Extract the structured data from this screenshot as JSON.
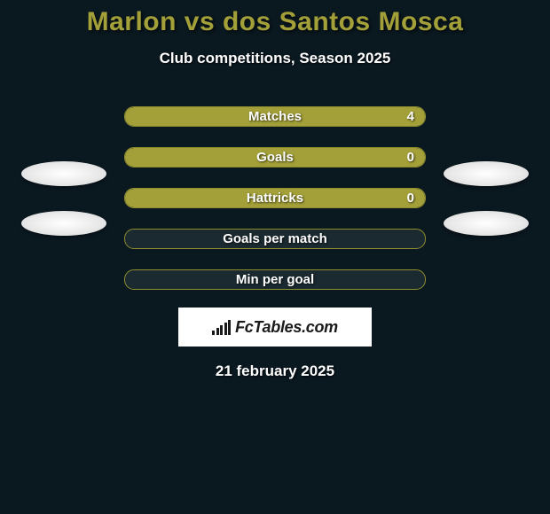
{
  "header": {
    "title": "Marlon vs dos Santos Mosca",
    "subtitle": "Club competitions, Season 2025"
  },
  "colors": {
    "page_bg": "#0a1820",
    "accent": "#a3a039",
    "bar_border": "#8f8d2e",
    "bar_bg": "#1a2a30",
    "text": "#ffffff",
    "badge_bg": "#ffffff"
  },
  "stats": [
    {
      "label": "Matches",
      "value": "4",
      "show_value": true,
      "fill_pct": 100
    },
    {
      "label": "Goals",
      "value": "0",
      "show_value": true,
      "fill_pct": 100
    },
    {
      "label": "Hattricks",
      "value": "0",
      "show_value": true,
      "fill_pct": 100
    },
    {
      "label": "Goals per match",
      "value": "",
      "show_value": false,
      "fill_pct": 0
    },
    {
      "label": "Min per goal",
      "value": "",
      "show_value": false,
      "fill_pct": 0
    }
  ],
  "left_badges_count": 2,
  "right_badges_count": 2,
  "brand": "FcTables.com",
  "date": "21 february 2025"
}
